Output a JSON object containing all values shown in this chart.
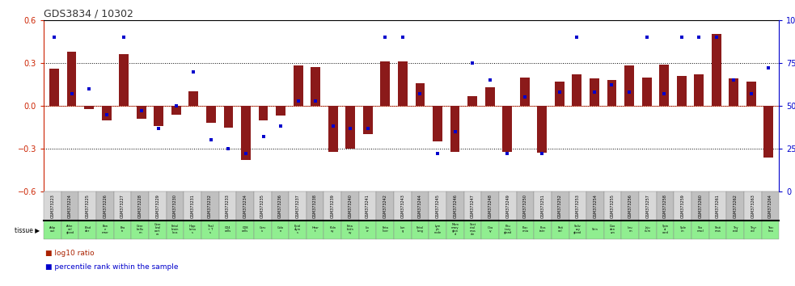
{
  "title": "GDS3834 / 10302",
  "gsm_labels": [
    "GSM373223",
    "GSM373224",
    "GSM373225",
    "GSM373226",
    "GSM373227",
    "GSM373228",
    "GSM373229",
    "GSM373230",
    "GSM373231",
    "GSM373232",
    "GSM373233",
    "GSM373234",
    "GSM373235",
    "GSM373236",
    "GSM373237",
    "GSM373238",
    "GSM373239",
    "GSM373240",
    "GSM373241",
    "GSM373242",
    "GSM373243",
    "GSM373244",
    "GSM373245",
    "GSM373246",
    "GSM373247",
    "GSM373248",
    "GSM373249",
    "GSM373250",
    "GSM373251",
    "GSM373252",
    "GSM373253",
    "GSM373254",
    "GSM373255",
    "GSM373256",
    "GSM373257",
    "GSM373258",
    "GSM373259",
    "GSM373260",
    "GSM373261",
    "GSM373262",
    "GSM373263",
    "GSM373264"
  ],
  "tissue_labels": [
    "Adip\nose",
    "Adre\nnal\ngland",
    "Blad\nder",
    "Bon\ne\nmarr",
    "Bra\nin",
    "Cere\nbellu\nm",
    "Cere\nbral\ncort\nex",
    "Fetal\nbrain\nloca",
    "Hipp\nlamu\ns",
    "Thal\n+ T\ns",
    "CD4\ncells",
    "CD8\ncells",
    "Cerv\nix",
    "Colo\nn",
    "Epid\ndym\ns",
    "Hear\nt",
    "Kidn\ney",
    "Feta\nlkidn\ney",
    "Liv\ner",
    "Feta\nliver",
    "Lun\ng",
    "Fetal\nlung",
    "Lym\nph\nnode",
    "Mam\nmary\nglan\nd",
    "Sket\netal\nmus\ncle",
    "Ova\nry",
    "Pitu\nitary\ngland",
    "Plac\nenta",
    "Pros\ntate",
    "Reti\nnal",
    "Saliv\nary\ngland",
    "Skin",
    "Duo\nden\num",
    "Ileu\nm",
    "Jeju\nnum",
    "Spin\nal\ncord",
    "Sple\nen",
    "Sto\nmacl",
    "Testi\nmus",
    "Thy\nroid",
    "Thyr\noid",
    "Trac\nhea"
  ],
  "log10_ratio": [
    0.26,
    0.38,
    -0.02,
    -0.1,
    0.36,
    -0.09,
    -0.14,
    -0.06,
    0.1,
    -0.12,
    -0.15,
    -0.38,
    -0.1,
    -0.07,
    0.28,
    0.27,
    -0.32,
    -0.3,
    -0.2,
    0.31,
    0.31,
    0.16,
    -0.25,
    -0.32,
    0.07,
    0.13,
    -0.32,
    0.2,
    -0.33,
    0.17,
    0.22,
    0.19,
    0.18,
    0.28,
    0.2,
    0.29,
    0.21,
    0.22,
    0.5,
    0.19,
    0.17,
    -0.36
  ],
  "percentile_rank": [
    90,
    57,
    60,
    45,
    90,
    47,
    37,
    50,
    70,
    30,
    25,
    22,
    32,
    38,
    53,
    53,
    38,
    37,
    37,
    90,
    90,
    57,
    22,
    35,
    75,
    65,
    22,
    55,
    22,
    58,
    90,
    58,
    62,
    58,
    90,
    57,
    90,
    90,
    90,
    65,
    57,
    72
  ],
  "bar_color": "#8B1A1A",
  "dot_color": "#0000CC",
  "left_axis_color": "#CC2200",
  "right_axis_color": "#0000CC",
  "ylim": [
    -0.6,
    0.6
  ],
  "right_ylim": [
    0,
    100
  ],
  "gsm_cell_colors": [
    "#D8D8D8",
    "#C0C0C0"
  ],
  "tissue_cell_color": "#90EE90",
  "legend_bar_color": "#AA2200",
  "legend_dot_color": "#0000CC"
}
